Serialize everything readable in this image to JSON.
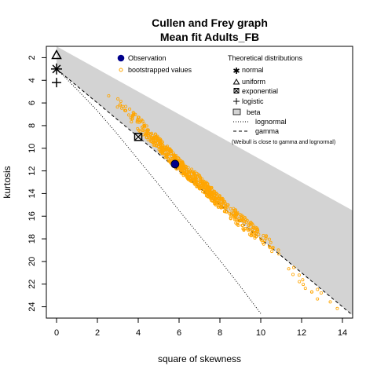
{
  "chart_data": {
    "type": "scatter",
    "title": "Cullen and Frey graph",
    "subtitle": "Mean fit  Adults_FB",
    "xlabel": "square of skewness",
    "ylabel": "kurtosis",
    "xlim": [
      -0.5,
      14.5
    ],
    "ylim": [
      25,
      1
    ],
    "y_reversed": true,
    "x_ticks": [
      0,
      2,
      4,
      6,
      8,
      10,
      12,
      14
    ],
    "y_ticks": [
      2,
      4,
      6,
      8,
      10,
      12,
      14,
      16,
      18,
      20,
      22,
      24
    ],
    "grid": false,
    "observation": {
      "x": 5.8,
      "y": 11.4
    },
    "theoretical_points": {
      "normal": {
        "x": 0,
        "y": 3
      },
      "uniform": {
        "x": 0,
        "y": 1.8
      },
      "exponential": {
        "x": 4,
        "y": 9
      },
      "logistic": {
        "x": 0,
        "y": 4.2
      }
    },
    "beta_region": {
      "upper": [
        [
          0,
          1
        ],
        [
          14.5,
          15.5
        ]
      ],
      "lower": [
        [
          0,
          3
        ],
        [
          14.5,
          24.75
        ]
      ]
    },
    "gamma_line": [
      [
        0,
        3
      ],
      [
        14.5,
        24.75
      ]
    ],
    "lognormal_line": [
      [
        0,
        3
      ],
      [
        1,
        4.8
      ],
      [
        2,
        6.7
      ],
      [
        3,
        8.8
      ],
      [
        4,
        11.0
      ],
      [
        5,
        13.2
      ],
      [
        6,
        15.5
      ],
      [
        7,
        17.7
      ],
      [
        8,
        19.9
      ],
      [
        9,
        22.2
      ],
      [
        10,
        24.6
      ]
    ],
    "bootstrap_band": [
      [
        2.0,
        4.8
      ],
      [
        3.0,
        6.0
      ],
      [
        4.0,
        7.8
      ],
      [
        5.0,
        9.6
      ],
      [
        6.0,
        11.5
      ],
      [
        7.0,
        13.0
      ],
      [
        8.0,
        14.8
      ],
      [
        9.0,
        16.4
      ],
      [
        10.0,
        17.8
      ],
      [
        11.0,
        19.4
      ],
      [
        11.5,
        20.5
      ],
      [
        12.5,
        22.5
      ],
      [
        14.2,
        24.2
      ]
    ],
    "colors": {
      "beta_region": "#d3d3d3",
      "bootstrap": "#ffa500",
      "observation": "#00008b",
      "lines": "#000000"
    },
    "legend": {
      "left": {
        "observation": "Observation",
        "bootstrap": "bootstrapped values"
      },
      "right": {
        "title": "Theoretical distributions",
        "normal": "normal",
        "uniform": "uniform",
        "exponential": "exponential",
        "logistic": "logistic",
        "beta": "beta",
        "lognormal": "lognormal",
        "gamma": "gamma",
        "note": "(Weibull is close to gamma and lognormal)"
      }
    }
  }
}
